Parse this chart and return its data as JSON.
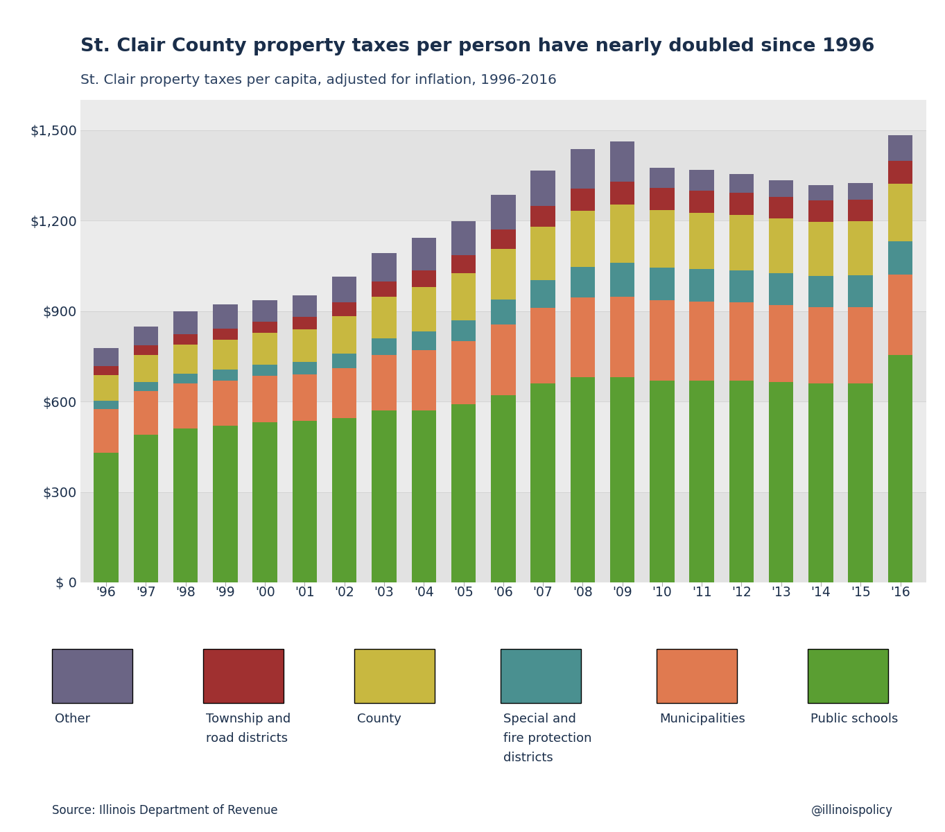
{
  "title": "St. Clair County property taxes per person have nearly doubled since 1996",
  "subtitle": "St. Clair property taxes per capita, adjusted for inflation, 1996-2016",
  "source": "Source: Illinois Department of Revenue",
  "credit": "@illinoispolicy",
  "years": [
    "'96",
    "'97",
    "'98",
    "'99",
    "'00",
    "'01",
    "'02",
    "'03",
    "'04",
    "'05",
    "'06",
    "'07",
    "'08",
    "'09",
    "'10",
    "'11",
    "'12",
    "'13",
    "'14",
    "'15",
    "'16"
  ],
  "categories": [
    "Public schools",
    "Municipalities",
    "Special and fire protection districts",
    "County",
    "Township and road districts",
    "Other"
  ],
  "colors": [
    "#5a9e32",
    "#e07a50",
    "#4a9090",
    "#c8b840",
    "#a03030",
    "#6b6585"
  ],
  "data": {
    "Public schools": [
      430,
      490,
      510,
      520,
      530,
      535,
      545,
      570,
      570,
      590,
      620,
      660,
      680,
      680,
      670,
      670,
      670,
      665,
      660,
      660,
      755
    ],
    "Municipalities": [
      145,
      145,
      150,
      150,
      155,
      155,
      165,
      185,
      200,
      210,
      235,
      250,
      265,
      268,
      265,
      262,
      258,
      255,
      252,
      252,
      265
    ],
    "Special and fire protection districts": [
      28,
      30,
      33,
      35,
      37,
      40,
      48,
      55,
      62,
      68,
      82,
      92,
      100,
      112,
      108,
      106,
      106,
      105,
      104,
      106,
      112
    ],
    "County": [
      85,
      90,
      95,
      100,
      105,
      110,
      125,
      138,
      148,
      158,
      168,
      178,
      188,
      192,
      192,
      188,
      185,
      183,
      180,
      180,
      190
    ],
    "Township and road districts": [
      30,
      32,
      35,
      37,
      38,
      40,
      45,
      50,
      54,
      59,
      64,
      68,
      73,
      76,
      74,
      72,
      72,
      71,
      70,
      71,
      75
    ],
    "Other": [
      60,
      62,
      75,
      80,
      70,
      72,
      85,
      95,
      108,
      112,
      115,
      118,
      130,
      135,
      65,
      70,
      62,
      55,
      52,
      55,
      85
    ]
  },
  "ylim": [
    0,
    1600
  ],
  "yticks": [
    0,
    300,
    600,
    900,
    1200,
    1500
  ],
  "ytick_labels": [
    "$ 0",
    "$300",
    "$600",
    "$900",
    "$1,200",
    "$1,500"
  ],
  "background_color": "#f0f0f0",
  "plot_bg_color": "#ebebeb",
  "title_color": "#1a2e4a",
  "subtitle_color": "#2a4060",
  "axis_color": "#1a2e4a",
  "bar_width": 0.62,
  "legend_labels": [
    "Other",
    "Township and\nroad districts",
    "County",
    "Special and\nfire protection\ndistricts",
    "Municipalities",
    "Public schools"
  ],
  "legend_colors": [
    "#6b6585",
    "#a03030",
    "#c8b840",
    "#4a9090",
    "#e07a50",
    "#5a9e32"
  ]
}
